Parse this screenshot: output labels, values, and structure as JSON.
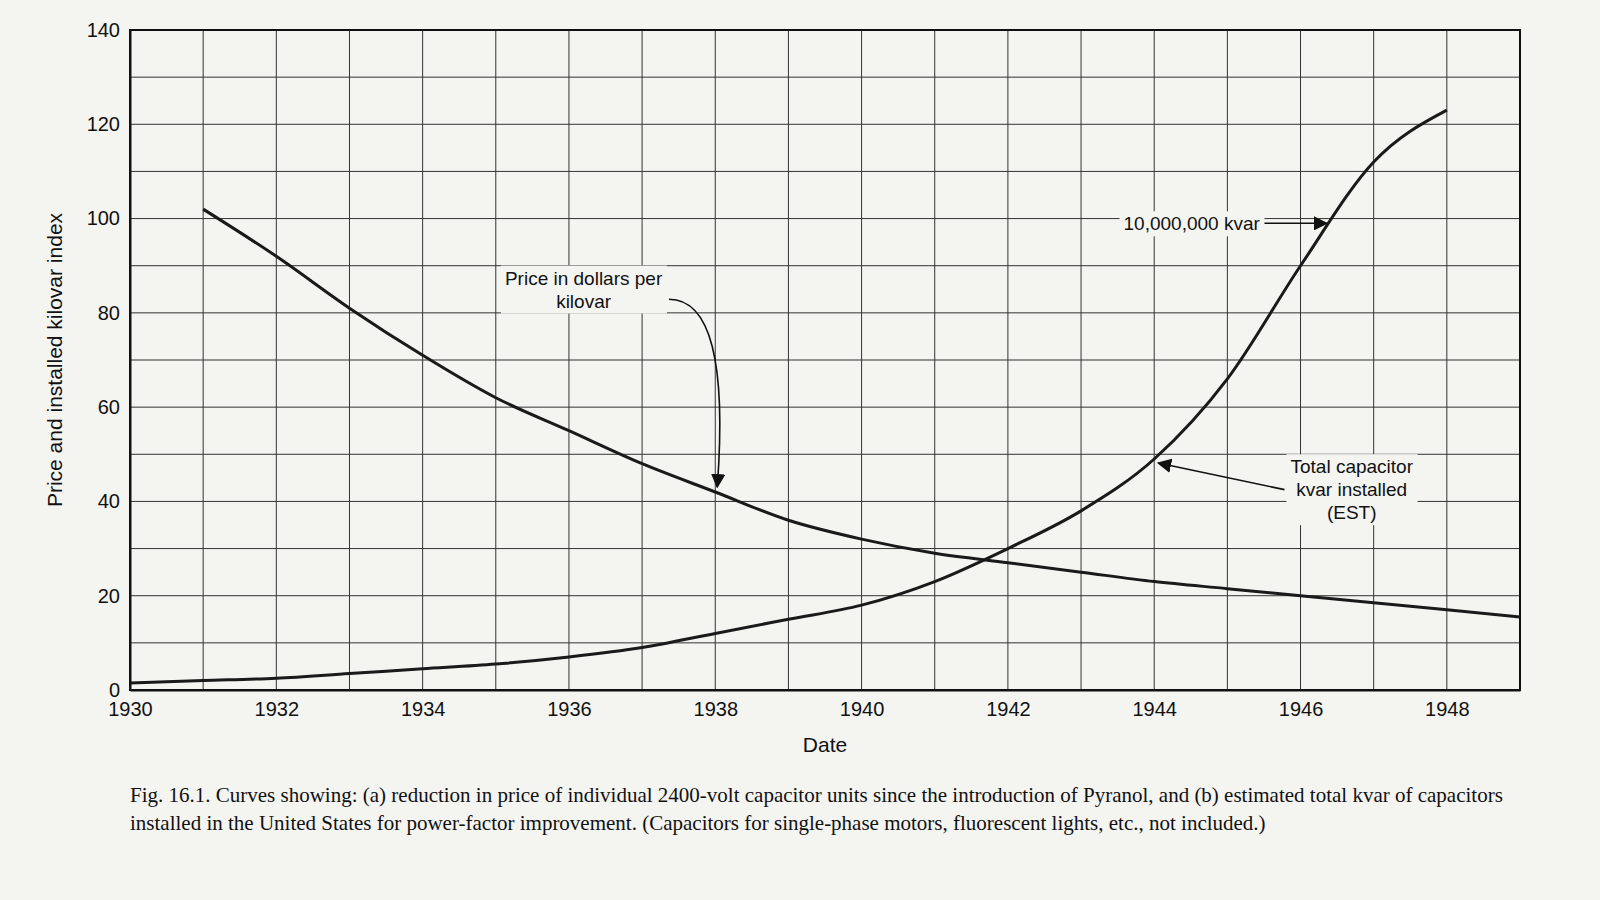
{
  "chart_data": {
    "type": "line",
    "caption": "Fig. 16.1. Curves showing: (a) reduction in price of individual 2400-volt capacitor units since the introduction of Pyranol, and (b) estimated total kvar of capacitors installed in the United States for power-factor improvement. (Capacitors for single-phase motors, fluorescent lights, etc., not included.)",
    "x_label": "Date",
    "y_label": "Price and installed kilovar index",
    "x": [
      1930,
      1931,
      1932,
      1933,
      1934,
      1935,
      1936,
      1937,
      1938,
      1939,
      1940,
      1941,
      1942,
      1943,
      1944,
      1945,
      1946,
      1947,
      1948,
      1949
    ],
    "series": [
      {
        "name": "Price in dollars per kilovar",
        "color": "#1a1a1a",
        "line_style": "solid",
        "values": [
          null,
          102,
          92,
          81,
          71,
          62,
          55,
          48,
          42,
          36,
          32,
          29,
          27,
          25,
          23,
          21.5,
          20,
          18.5,
          17,
          15.5
        ]
      },
      {
        "name": "Total capacitor kvar installed (EST)",
        "color": "#1a1a1a",
        "line_style": "solid",
        "values": [
          1.5,
          2,
          2.5,
          3.5,
          4.5,
          5.5,
          7,
          9,
          12,
          15,
          18,
          23,
          30,
          38,
          49,
          66,
          90,
          112,
          123,
          null
        ]
      }
    ],
    "annotations": [
      {
        "text": "10,000,000 kvar",
        "x": 1946.4,
        "y": 99
      }
    ],
    "xlim": [
      1930,
      1949
    ],
    "ylim": [
      0,
      140
    ],
    "xticks": [
      1930,
      1932,
      1934,
      1936,
      1938,
      1940,
      1942,
      1944,
      1946,
      1948
    ],
    "yticks": [
      0,
      20,
      40,
      60,
      80,
      100,
      120,
      140
    ],
    "grid": true
  }
}
